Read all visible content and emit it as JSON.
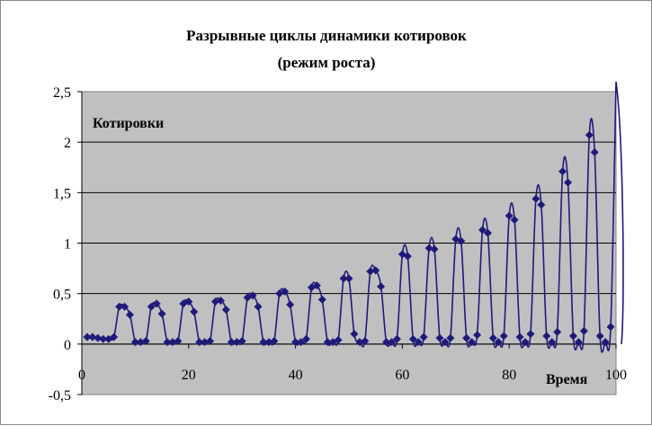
{
  "chart_data": {
    "type": "line",
    "title": "Разрывные циклы динамики котировок",
    "subtitle": "(режим роста)",
    "ylabel": "Котировки",
    "xlabel": "Время",
    "xlim": [
      0,
      100
    ],
    "ylim": [
      -0.5,
      2.5
    ],
    "xticks": [
      "0",
      "20",
      "40",
      "60",
      "80",
      "100"
    ],
    "yticks": [
      "2,5",
      "2",
      "1,5",
      "1",
      "0,5",
      "0",
      "-0,5"
    ],
    "plot_background": "#c0c0c0",
    "series_color": "#1f1a7a",
    "marker": "diamond",
    "grid": "horizontal",
    "legend": "none",
    "series": [
      {
        "x": [
          1,
          2,
          3,
          4,
          5,
          6,
          7,
          8,
          9,
          10,
          11,
          12,
          13,
          14,
          15,
          16,
          17,
          18,
          19,
          20,
          21,
          22,
          23,
          24,
          25,
          26,
          27,
          28,
          29,
          30,
          31,
          32,
          33,
          34,
          35,
          36,
          37,
          38,
          39,
          40,
          41,
          42,
          43,
          44,
          45,
          46,
          47,
          48,
          49,
          50,
          51,
          52,
          53,
          54,
          55,
          56,
          57,
          58,
          59,
          60,
          61,
          62,
          63,
          64,
          65,
          66,
          67,
          68,
          69,
          70,
          71,
          72,
          73,
          74,
          75,
          76,
          77,
          78,
          79,
          80,
          81,
          82,
          83,
          84,
          85,
          86,
          87,
          88,
          89,
          90,
          91,
          92,
          93,
          94,
          95,
          96,
          97,
          98,
          99,
          100
        ],
        "values": [
          0.07,
          0.07,
          0.06,
          0.05,
          0.05,
          0.07,
          0.37,
          0.37,
          0.29,
          0.02,
          0.02,
          0.03,
          0.37,
          0.4,
          0.3,
          0.02,
          0.02,
          0.03,
          0.4,
          0.42,
          0.32,
          0.02,
          0.02,
          0.03,
          0.42,
          0.43,
          0.34,
          0.02,
          0.02,
          0.03,
          0.46,
          0.48,
          0.37,
          0.02,
          0.02,
          0.03,
          0.5,
          0.52,
          0.39,
          0.02,
          0.02,
          0.05,
          0.56,
          0.58,
          0.44,
          0.02,
          0.02,
          0.04,
          0.65,
          0.65,
          0.1,
          0.02,
          0.03,
          0.72,
          0.73,
          0.57,
          0.02,
          0.02,
          0.05,
          0.89,
          0.87,
          0.05,
          0.02,
          0.07,
          0.95,
          0.94,
          0.06,
          0.02,
          0.06,
          1.04,
          1.02,
          0.06,
          0.02,
          0.09,
          1.13,
          1.1,
          0.06,
          0.02,
          0.08,
          1.27,
          1.23,
          0.07,
          0.02,
          0.1,
          1.44,
          1.38,
          0.08,
          0.02,
          0.12,
          1.71,
          1.6,
          0.08,
          0.02,
          0.13,
          2.07,
          1.9,
          0.08,
          0.02,
          0.17,
          2.6
        ]
      }
    ]
  }
}
